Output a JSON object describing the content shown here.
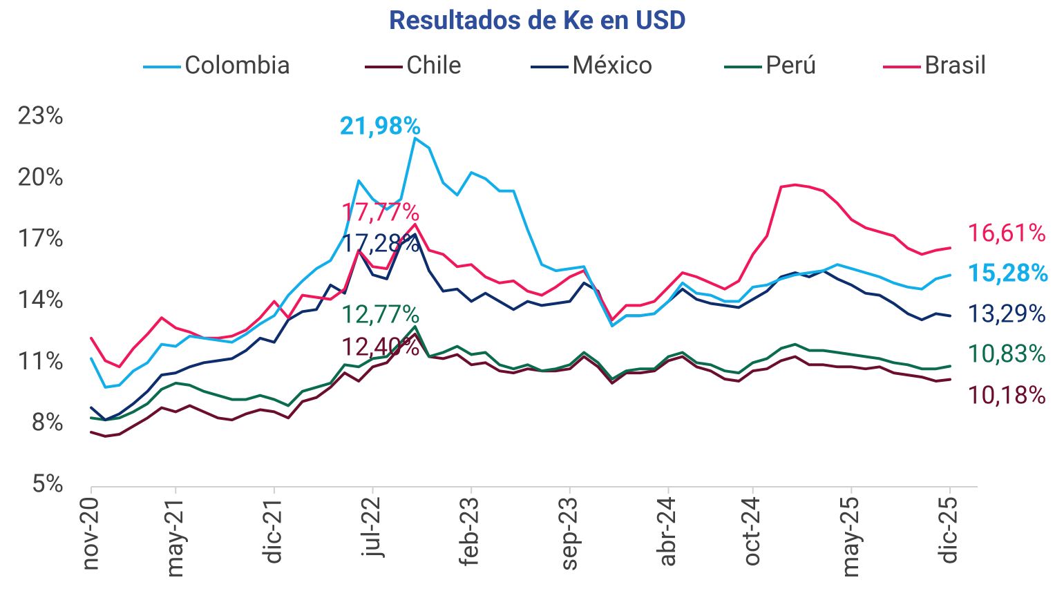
{
  "chart_data": {
    "type": "line",
    "title": "Resultados de Ke en USD",
    "categories": [
      "nov-20",
      null,
      null,
      null,
      null,
      null,
      "may-21",
      null,
      null,
      null,
      null,
      null,
      null,
      "dic-21",
      null,
      null,
      null,
      null,
      null,
      null,
      "jul-22",
      null,
      null,
      null,
      null,
      null,
      null,
      "feb-23",
      null,
      null,
      null,
      null,
      null,
      null,
      "sep-23",
      null,
      null,
      null,
      null,
      null,
      null,
      "abr-24",
      null,
      null,
      null,
      null,
      null,
      "oct-24",
      null,
      null,
      null,
      null,
      null,
      null,
      "may-25",
      null,
      null,
      null,
      null,
      null,
      null,
      "dic-25"
    ],
    "ylim": [
      5,
      23
    ],
    "yticks": [
      {
        "value": 5,
        "label": "5%"
      },
      {
        "value": 8,
        "label": "8%"
      },
      {
        "value": 11,
        "label": "11%"
      },
      {
        "value": 14,
        "label": "14%"
      },
      {
        "value": 17,
        "label": "17%"
      },
      {
        "value": 20,
        "label": "20%"
      },
      {
        "value": 23,
        "label": "23%"
      }
    ],
    "grid": false,
    "legend": "top",
    "series": [
      {
        "name": "Colombia",
        "color": "#12AEEA",
        "values": [
          11.2,
          9.8,
          9.9,
          10.6,
          11.0,
          11.9,
          11.8,
          12.3,
          12.2,
          12.1,
          12.0,
          12.4,
          12.9,
          13.3,
          14.3,
          15.0,
          15.6,
          16.0,
          17.2,
          19.9,
          19.0,
          18.5,
          19.0,
          21.98,
          21.5,
          19.8,
          19.2,
          20.3,
          20.0,
          19.4,
          19.4,
          17.5,
          15.8,
          15.5,
          15.6,
          15.7,
          14.2,
          12.8,
          13.3,
          13.3,
          13.4,
          14.0,
          14.9,
          14.4,
          14.3,
          14.0,
          14.0,
          14.7,
          14.8,
          15.1,
          15.3,
          15.4,
          15.5,
          15.8,
          15.6,
          15.4,
          15.2,
          14.9,
          14.7,
          14.6,
          15.1,
          15.28
        ],
        "value_labels": [
          null,
          null,
          null,
          null,
          null,
          null,
          null,
          null,
          null,
          null,
          null,
          null,
          null,
          null,
          null,
          null,
          null,
          null,
          null,
          null,
          null,
          null,
          null,
          "21,98%",
          null,
          null,
          null,
          null,
          null,
          null,
          null,
          null,
          null,
          null,
          null,
          null,
          null,
          null,
          null,
          null,
          null,
          null,
          null,
          null,
          null,
          null,
          null,
          null,
          null,
          null,
          null,
          null,
          null,
          null,
          null,
          null,
          null,
          null,
          null,
          null,
          null,
          "15,28%"
        ]
      },
      {
        "name": "Chile",
        "color": "#6B0D2C",
        "values": [
          7.6,
          7.4,
          7.5,
          7.9,
          8.3,
          8.8,
          8.6,
          8.9,
          8.6,
          8.3,
          8.2,
          8.5,
          8.7,
          8.6,
          8.3,
          9.1,
          9.3,
          9.8,
          10.5,
          10.1,
          10.8,
          11.0,
          11.8,
          12.4,
          11.3,
          11.2,
          11.4,
          10.9,
          11.0,
          10.6,
          10.5,
          10.7,
          10.6,
          10.6,
          10.7,
          11.3,
          10.8,
          10.0,
          10.5,
          10.5,
          10.6,
          11.1,
          11.3,
          10.8,
          10.6,
          10.2,
          10.1,
          10.6,
          10.7,
          11.1,
          11.3,
          10.9,
          10.9,
          10.8,
          10.8,
          10.7,
          10.8,
          10.5,
          10.4,
          10.3,
          10.1,
          10.18
        ],
        "value_labels": [
          null,
          null,
          null,
          null,
          null,
          null,
          null,
          null,
          null,
          null,
          null,
          null,
          null,
          null,
          null,
          null,
          null,
          null,
          null,
          null,
          null,
          null,
          null,
          "12,40%",
          null,
          null,
          null,
          null,
          null,
          null,
          null,
          null,
          null,
          null,
          null,
          null,
          null,
          null,
          null,
          null,
          null,
          null,
          null,
          null,
          null,
          null,
          null,
          null,
          null,
          null,
          null,
          null,
          null,
          null,
          null,
          null,
          null,
          null,
          null,
          null,
          null,
          "10,18%"
        ]
      },
      {
        "name": "México",
        "color": "#0D2D6C",
        "values": [
          8.8,
          8.2,
          8.5,
          9.0,
          9.6,
          10.4,
          10.5,
          10.8,
          11.0,
          11.1,
          11.2,
          11.6,
          12.2,
          12.0,
          13.1,
          13.5,
          13.6,
          14.8,
          14.4,
          16.5,
          15.3,
          15.1,
          16.8,
          17.28,
          15.5,
          14.5,
          14.6,
          14.0,
          14.4,
          14.0,
          13.6,
          14.0,
          13.8,
          13.9,
          14.0,
          14.9,
          14.5,
          12.8,
          13.3,
          13.3,
          13.4,
          14.0,
          14.6,
          14.1,
          13.9,
          13.8,
          13.7,
          14.1,
          14.5,
          15.2,
          15.4,
          15.2,
          15.5,
          15.1,
          14.8,
          14.4,
          14.3,
          13.9,
          13.4,
          13.1,
          13.4,
          13.29
        ],
        "value_labels": [
          null,
          null,
          null,
          null,
          null,
          null,
          null,
          null,
          null,
          null,
          null,
          null,
          null,
          null,
          null,
          null,
          null,
          null,
          null,
          null,
          null,
          null,
          null,
          "17,28%",
          null,
          null,
          null,
          null,
          null,
          null,
          null,
          null,
          null,
          null,
          null,
          null,
          null,
          null,
          null,
          null,
          null,
          null,
          null,
          null,
          null,
          null,
          null,
          null,
          null,
          null,
          null,
          null,
          null,
          null,
          null,
          null,
          null,
          null,
          null,
          null,
          null,
          "13,29%"
        ]
      },
      {
        "name": "Perú",
        "color": "#0B6B4F",
        "values": [
          8.3,
          8.2,
          8.3,
          8.6,
          9.0,
          9.7,
          10.0,
          9.9,
          9.6,
          9.4,
          9.2,
          9.2,
          9.4,
          9.2,
          8.9,
          9.6,
          9.8,
          10.0,
          10.9,
          10.8,
          11.2,
          11.3,
          12.0,
          12.77,
          11.3,
          11.5,
          11.8,
          11.4,
          11.5,
          10.9,
          10.7,
          10.9,
          10.6,
          10.7,
          10.9,
          11.5,
          11.0,
          10.2,
          10.6,
          10.7,
          10.7,
          11.3,
          11.5,
          11.0,
          10.9,
          10.6,
          10.5,
          11.0,
          11.2,
          11.7,
          11.9,
          11.6,
          11.6,
          11.5,
          11.4,
          11.3,
          11.2,
          11.0,
          10.9,
          10.7,
          10.7,
          10.83
        ],
        "value_labels": [
          null,
          null,
          null,
          null,
          null,
          null,
          null,
          null,
          null,
          null,
          null,
          null,
          null,
          null,
          null,
          null,
          null,
          null,
          null,
          null,
          null,
          null,
          null,
          "12,77%",
          null,
          null,
          null,
          null,
          null,
          null,
          null,
          null,
          null,
          null,
          null,
          null,
          null,
          null,
          null,
          null,
          null,
          null,
          null,
          null,
          null,
          null,
          null,
          null,
          null,
          null,
          null,
          null,
          null,
          null,
          null,
          null,
          null,
          null,
          null,
          null,
          null,
          "10,83%"
        ]
      },
      {
        "name": "Brasil",
        "color": "#F0185A",
        "values": [
          12.2,
          11.1,
          10.8,
          11.7,
          12.4,
          13.2,
          12.7,
          12.5,
          12.2,
          12.2,
          12.3,
          12.6,
          13.2,
          14.0,
          13.2,
          14.3,
          14.2,
          14.1,
          14.6,
          16.5,
          15.7,
          15.6,
          17.0,
          17.77,
          16.5,
          16.3,
          15.7,
          15.8,
          15.2,
          14.9,
          15.0,
          14.5,
          14.3,
          14.7,
          15.2,
          15.5,
          14.4,
          13.1,
          13.8,
          13.8,
          14.0,
          14.7,
          15.4,
          15.2,
          14.9,
          14.6,
          15.0,
          16.3,
          17.2,
          19.6,
          19.7,
          19.6,
          19.4,
          18.8,
          18.0,
          17.6,
          17.4,
          17.2,
          16.6,
          16.3,
          16.5,
          16.61
        ],
        "value_labels": [
          null,
          null,
          null,
          null,
          null,
          null,
          null,
          null,
          null,
          null,
          null,
          null,
          null,
          null,
          null,
          null,
          null,
          null,
          null,
          null,
          null,
          null,
          null,
          "17,77%",
          null,
          null,
          null,
          null,
          null,
          null,
          null,
          null,
          null,
          null,
          null,
          null,
          null,
          null,
          null,
          null,
          null,
          null,
          null,
          null,
          null,
          null,
          null,
          null,
          null,
          null,
          null,
          null,
          null,
          null,
          null,
          null,
          null,
          null,
          null,
          null,
          null,
          "16,61%"
        ]
      }
    ]
  }
}
